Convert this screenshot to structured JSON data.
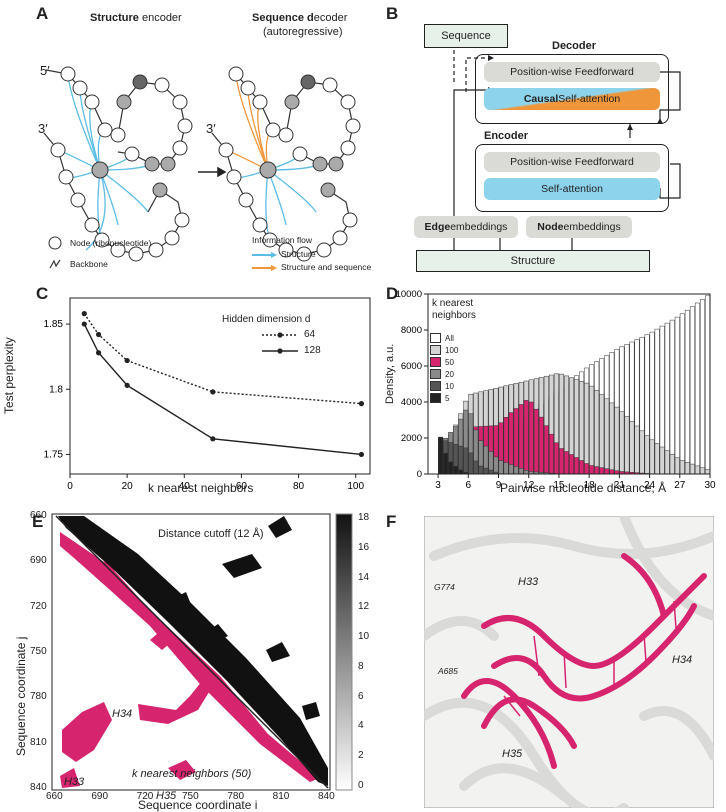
{
  "panel_labels": {
    "a": "A",
    "b": "B",
    "c": "C",
    "d": "D",
    "e": "E",
    "f": "F"
  },
  "panel_a": {
    "enc_title_bold": "Structure",
    "enc_title_rest": " encoder",
    "dec_title_bold1": "Sequence d",
    "dec_title_rest": "ecoder",
    "dec_sub": "(autoregressive)",
    "five_prime": "5′",
    "three_prime": "3′",
    "legend_node": "Node (ribonucleotide)",
    "legend_backbone": "Backbone",
    "legend_flow_title": "Information flow",
    "legend_flow_structure": "Structure",
    "legend_flow_both": "Structure and sequence",
    "flow_colors": {
      "structure": "#5bbde6",
      "both": "#f0963a"
    }
  },
  "panel_b": {
    "sequence": "Sequence",
    "decoder": "Decoder",
    "encoder": "Encoder",
    "ffn": "Position-wise Feedforward",
    "causal_bold": "Causal",
    "causal_rest": " Self-attention",
    "self_attn": "Self-attention",
    "edge_bold": "Edge",
    "edge_rest": " embeddings",
    "node_bold": "Node",
    "node_rest": " embeddings",
    "structure": "Structure",
    "colors": {
      "attention": "#8dd3ec",
      "causal": "#f0963a",
      "ffn": "#dcdcd8",
      "io": "#e8f0ea"
    }
  },
  "panel_c": {
    "chart_data": {
      "type": "line",
      "xlabel": "k nearest neighbors",
      "ylabel": "Test perplexity",
      "legend_title": "Hidden dimension d",
      "xlim": [
        0,
        105
      ],
      "ylim": [
        1.735,
        1.87
      ],
      "xticks": [
        "0",
        "20",
        "40",
        "60",
        "80",
        "100"
      ],
      "yticks": [
        "1.75",
        "1.8",
        "1.85"
      ],
      "series": [
        {
          "name": "64",
          "style": "dotted",
          "x": [
            5,
            10,
            20,
            50,
            102
          ],
          "values": [
            1.858,
            1.842,
            1.822,
            1.798,
            1.789
          ]
        },
        {
          "name": "128",
          "style": "solid",
          "x": [
            5,
            10,
            20,
            50,
            102
          ],
          "values": [
            1.85,
            1.828,
            1.803,
            1.762,
            1.75
          ]
        }
      ]
    }
  },
  "panel_d": {
    "chart_data": {
      "type": "bar",
      "xlabel": "Pairwise nucleotide distance, Å",
      "ylabel": "Density, a.u.",
      "legend_title": "k nearest neighbors",
      "xlim": [
        2,
        30
      ],
      "ylim": [
        0,
        10000
      ],
      "xticks": [
        "3",
        "6",
        "9",
        "12",
        "15",
        "18",
        "21",
        "24",
        "27",
        "30"
      ],
      "yticks": [
        "0",
        "2000",
        "4000",
        "6000",
        "8000",
        "10000"
      ],
      "series": [
        {
          "name": "All",
          "color": "#ffffff",
          "x": [
            3,
            6,
            9,
            12,
            15,
            18,
            21,
            24,
            27,
            30
          ],
          "values": [
            300,
            900,
            2000,
            3300,
            4700,
            6000,
            7000,
            7800,
            8800,
            10000
          ]
        },
        {
          "name": "100",
          "color": "#d4d4d4",
          "x": [
            3,
            5,
            6,
            9,
            12,
            15,
            18,
            21,
            24,
            27,
            30
          ],
          "values": [
            800,
            3000,
            4400,
            4800,
            5200,
            5600,
            5000,
            3600,
            2000,
            800,
            200
          ]
        },
        {
          "name": "50",
          "color": "#d6246e",
          "x": [
            3,
            6,
            9,
            10,
            12,
            13,
            15,
            18,
            21,
            24
          ],
          "values": [
            900,
            2600,
            2700,
            3300,
            4200,
            3400,
            1500,
            500,
            150,
            20
          ]
        },
        {
          "name": "20",
          "color": "#8a8a8a",
          "x": [
            3,
            5,
            6,
            7,
            9,
            12,
            15
          ],
          "values": [
            1500,
            2800,
            3800,
            2000,
            800,
            150,
            10
          ]
        },
        {
          "name": "10",
          "color": "#555555",
          "x": [
            3,
            4,
            6,
            7,
            9
          ],
          "values": [
            2000,
            1800,
            1400,
            500,
            50
          ]
        },
        {
          "name": "5",
          "color": "#222222",
          "x": [
            2.8,
            3,
            3.5,
            4,
            5,
            6
          ],
          "values": [
            300,
            2600,
            1500,
            800,
            300,
            20
          ]
        }
      ]
    }
  },
  "panel_e": {
    "xlabel": "Sequence coordinate i",
    "ylabel": "Sequence coordinate j",
    "upper_label": "Distance cutoff (12 Å)",
    "lower_label": "k nearest neighbors (50)",
    "ticks": [
      "660",
      "690",
      "720",
      "750",
      "780",
      "810",
      "840"
    ],
    "colorbar_ticks": [
      "18",
      "16",
      "14",
      "12",
      "10",
      "8",
      "6",
      "4",
      "2",
      "0"
    ],
    "helix_labels": [
      "H34",
      "H33",
      "H35"
    ],
    "accent": "#d6246e"
  },
  "panel_f": {
    "labels": {
      "g774": "G774",
      "h33": "H33",
      "a685": "A685",
      "h34": "H34",
      "h35": "H35"
    },
    "accent": "#d6246e"
  }
}
